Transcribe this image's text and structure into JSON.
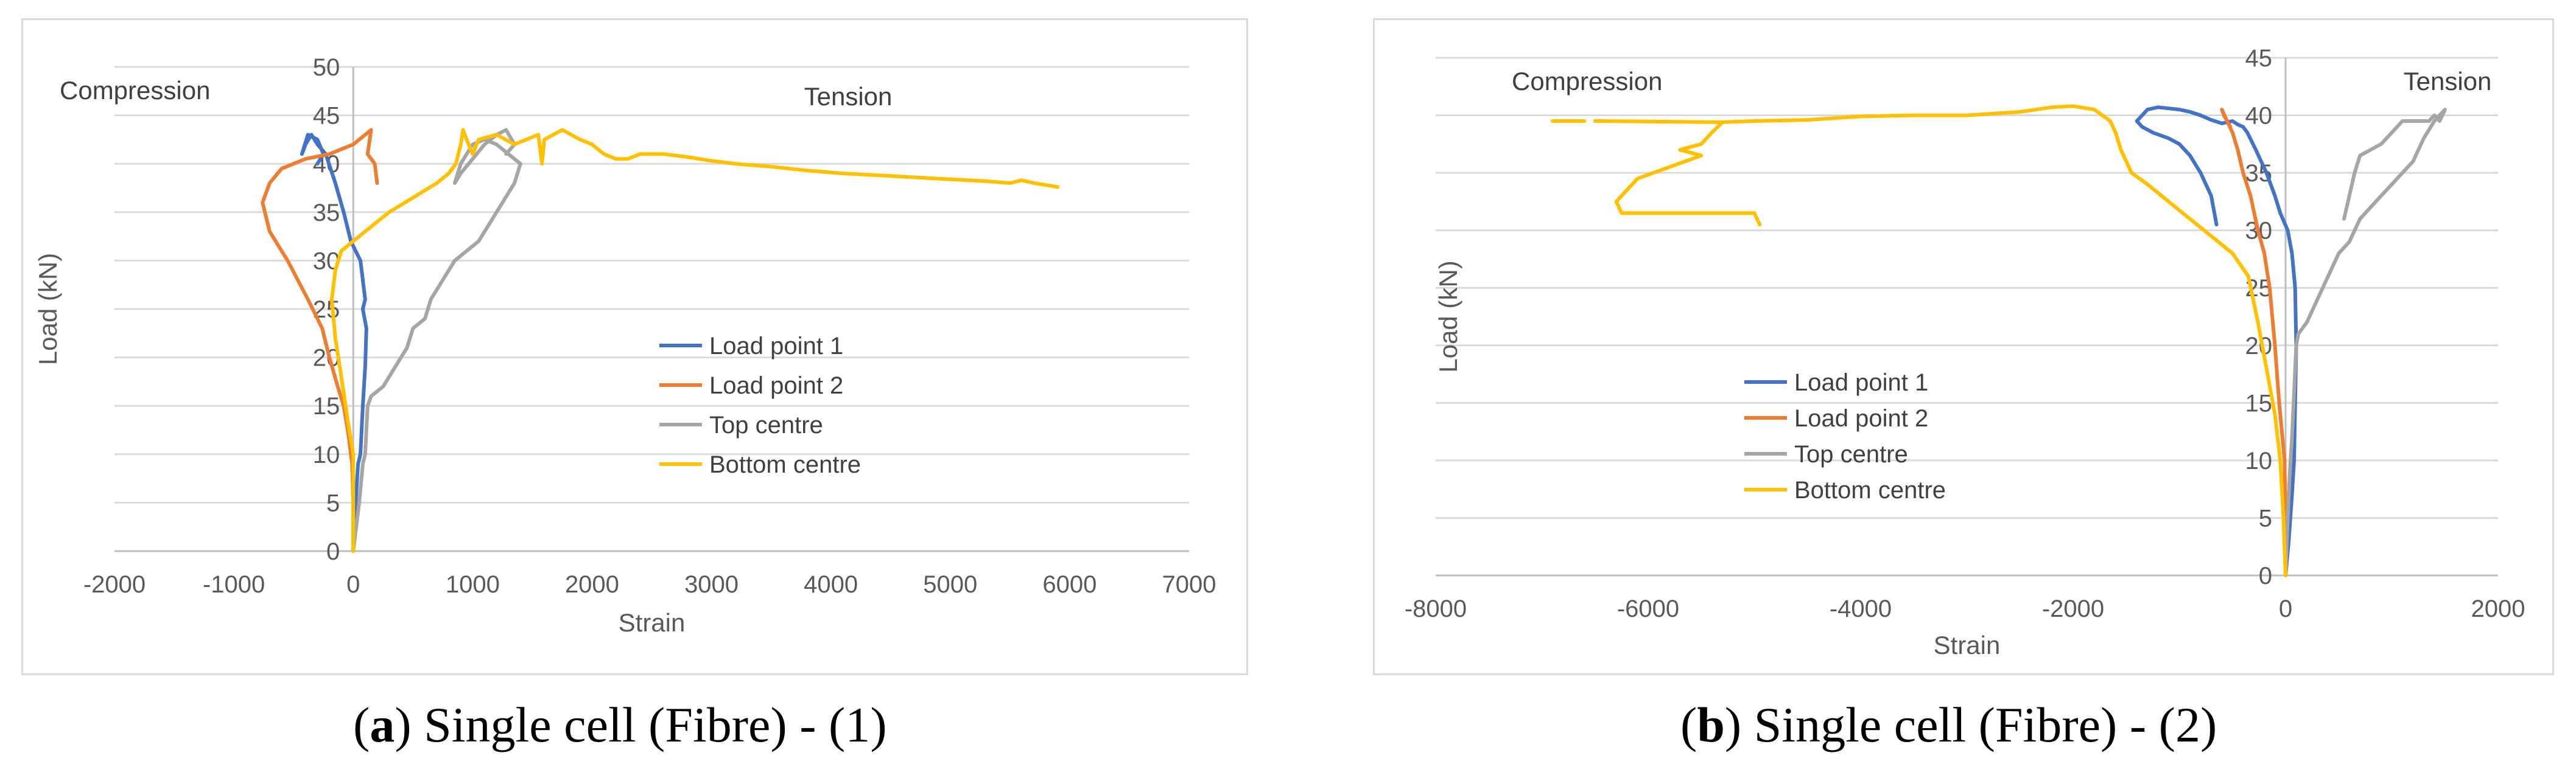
{
  "chart_data": [
    {
      "type": "line",
      "xlabel": "Strain",
      "ylabel": "Load (kN)",
      "xlim": [
        -2000,
        7000
      ],
      "ylim": [
        0,
        50
      ],
      "xticks": [
        -2000,
        -1000,
        0,
        1000,
        2000,
        3000,
        4000,
        5000,
        6000,
        7000
      ],
      "yticks": [
        0,
        5,
        10,
        15,
        20,
        25,
        30,
        35,
        40,
        45,
        50
      ],
      "grid": "horizontal",
      "legend_position": "center-right",
      "annotations": [
        "Compression",
        "Tension"
      ],
      "caption_letter": "a",
      "caption_text": ") Single cell (Fibre) - (1)",
      "caption_open": "(",
      "series": [
        {
          "name": "Load point 1",
          "color": "#4472c4",
          "points": [
            [
              0,
              0
            ],
            [
              20,
              5
            ],
            [
              40,
              9
            ],
            [
              60,
              10
            ],
            [
              80,
              15
            ],
            [
              100,
              19
            ],
            [
              110,
              23
            ],
            [
              80,
              25
            ],
            [
              100,
              26
            ],
            [
              80,
              28
            ],
            [
              60,
              30
            ],
            [
              -20,
              32
            ],
            [
              -80,
              35
            ],
            [
              -150,
              38
            ],
            [
              -230,
              41
            ],
            [
              -300,
              42
            ],
            [
              -350,
              43
            ],
            [
              -400,
              42
            ],
            [
              -430,
              41
            ],
            [
              -380,
              43
            ],
            [
              -300,
              42.5
            ],
            [
              -250,
              41
            ],
            [
              -300,
              40
            ]
          ]
        },
        {
          "name": "Load point 2",
          "color": "#ed7d31",
          "points": [
            [
              0,
              0
            ],
            [
              0,
              5
            ],
            [
              -10,
              9
            ],
            [
              -40,
              12
            ],
            [
              -80,
              15
            ],
            [
              -130,
              17
            ],
            [
              -200,
              20
            ],
            [
              -260,
              23
            ],
            [
              -380,
              26
            ],
            [
              -550,
              30
            ],
            [
              -700,
              33
            ],
            [
              -760,
              36
            ],
            [
              -700,
              38
            ],
            [
              -600,
              39.5
            ],
            [
              -400,
              40.5
            ],
            [
              -200,
              41
            ],
            [
              0,
              42
            ],
            [
              100,
              43
            ],
            [
              150,
              43.5
            ],
            [
              120,
              41
            ],
            [
              180,
              40
            ],
            [
              200,
              38
            ]
          ]
        },
        {
          "name": "Top centre",
          "color": "#a5a5a5",
          "points": [
            [
              0,
              0
            ],
            [
              50,
              5
            ],
            [
              80,
              9
            ],
            [
              100,
              10
            ],
            [
              120,
              15
            ],
            [
              150,
              16
            ],
            [
              250,
              17
            ],
            [
              350,
              19
            ],
            [
              450,
              21
            ],
            [
              500,
              23
            ],
            [
              600,
              24
            ],
            [
              650,
              26
            ],
            [
              750,
              28
            ],
            [
              850,
              30
            ],
            [
              950,
              31
            ],
            [
              1050,
              32
            ],
            [
              1150,
              34
            ],
            [
              1250,
              36
            ],
            [
              1350,
              38
            ],
            [
              1400,
              40
            ],
            [
              1300,
              41
            ],
            [
              1200,
              42
            ],
            [
              1100,
              42.5
            ],
            [
              1000,
              42
            ],
            [
              900,
              40
            ],
            [
              850,
              38
            ],
            [
              900,
              39
            ],
            [
              1000,
              40.5
            ],
            [
              1100,
              42
            ],
            [
              1200,
              43
            ],
            [
              1280,
              43.5
            ],
            [
              1350,
              42
            ],
            [
              1280,
              41
            ]
          ]
        },
        {
          "name": "Bottom centre",
          "color": "#ffc000",
          "points": [
            [
              0,
              0
            ],
            [
              0,
              5
            ],
            [
              0,
              10
            ],
            [
              -40,
              13
            ],
            [
              -100,
              18
            ],
            [
              -150,
              22
            ],
            [
              -180,
              26
            ],
            [
              -150,
              29
            ],
            [
              -100,
              31
            ],
            [
              100,
              33
            ],
            [
              300,
              35
            ],
            [
              500,
              36.5
            ],
            [
              700,
              38
            ],
            [
              800,
              39
            ],
            [
              860,
              40
            ],
            [
              900,
              42
            ],
            [
              920,
              43.5
            ],
            [
              950,
              42.5
            ],
            [
              1000,
              41
            ],
            [
              1050,
              42.5
            ],
            [
              1200,
              43
            ],
            [
              1350,
              42
            ],
            [
              1550,
              43
            ],
            [
              1580,
              40
            ],
            [
              1600,
              42.5
            ],
            [
              1750,
              43.5
            ],
            [
              1900,
              42.5
            ],
            [
              2000,
              42
            ],
            [
              2100,
              41
            ],
            [
              2200,
              40.5
            ],
            [
              2300,
              40.5
            ],
            [
              2400,
              41
            ],
            [
              2600,
              41
            ],
            [
              2800,
              40.7
            ],
            [
              3000,
              40.3
            ],
            [
              3200,
              40
            ],
            [
              3500,
              39.7
            ],
            [
              3800,
              39.3
            ],
            [
              4100,
              39
            ],
            [
              4400,
              38.8
            ],
            [
              4700,
              38.6
            ],
            [
              5000,
              38.4
            ],
            [
              5300,
              38.2
            ],
            [
              5500,
              38
            ],
            [
              5600,
              38.3
            ],
            [
              5700,
              38
            ],
            [
              5800,
              37.8
            ],
            [
              5900,
              37.6
            ]
          ]
        }
      ]
    },
    {
      "type": "line",
      "xlabel": "Strain",
      "ylabel": "Load (kN)",
      "xlim": [
        -8000,
        2000
      ],
      "ylim": [
        0,
        45
      ],
      "xticks": [
        -8000,
        -6000,
        -4000,
        -2000,
        0,
        2000
      ],
      "yticks": [
        0,
        5,
        10,
        15,
        20,
        25,
        30,
        35,
        40,
        45
      ],
      "grid": "horizontal",
      "legend_position": "center-right",
      "annotations": [
        "Compression",
        "Tension"
      ],
      "caption_letter": "b",
      "caption_text": ") Single cell (Fibre) - (2)",
      "caption_open": "(",
      "series": [
        {
          "name": "Load point 1",
          "color": "#4472c4",
          "points": [
            [
              0,
              0
            ],
            [
              30,
              3
            ],
            [
              60,
              7
            ],
            [
              80,
              10
            ],
            [
              90,
              15
            ],
            [
              100,
              20
            ],
            [
              90,
              25
            ],
            [
              60,
              28
            ],
            [
              20,
              30
            ],
            [
              -50,
              31.5
            ],
            [
              -100,
              33
            ],
            [
              -180,
              35
            ],
            [
              -280,
              37
            ],
            [
              -360,
              38.5
            ],
            [
              -400,
              39
            ],
            [
              -450,
              39.2
            ],
            [
              -500,
              39.5
            ],
            [
              -600,
              39.3
            ],
            [
              -700,
              39.6
            ],
            [
              -800,
              40
            ],
            [
              -900,
              40.3
            ],
            [
              -1000,
              40.5
            ],
            [
              -1100,
              40.6
            ],
            [
              -1200,
              40.7
            ],
            [
              -1300,
              40.5
            ],
            [
              -1400,
              39.5
            ],
            [
              -1350,
              39
            ],
            [
              -1250,
              38.5
            ],
            [
              -1100,
              38
            ],
            [
              -1000,
              37.5
            ],
            [
              -900,
              36.5
            ],
            [
              -800,
              35
            ],
            [
              -700,
              33
            ],
            [
              -650,
              30.5
            ]
          ]
        },
        {
          "name": "Load point 2",
          "color": "#ed7d31",
          "points": [
            [
              0,
              0
            ],
            [
              0,
              5
            ],
            [
              -10,
              10
            ],
            [
              -30,
              12
            ],
            [
              -60,
              15
            ],
            [
              -100,
              20
            ],
            [
              -150,
              25
            ],
            [
              -200,
              28
            ],
            [
              -260,
              30
            ],
            [
              -330,
              33
            ],
            [
              -400,
              35
            ],
            [
              -450,
              37
            ],
            [
              -500,
              38.5
            ],
            [
              -550,
              39.5
            ],
            [
              -600,
              40.5
            ],
            [
              -580,
              40
            ],
            [
              -520,
              39
            ]
          ]
        },
        {
          "name": "Top centre",
          "color": "#a5a5a5",
          "points": [
            [
              0,
              0
            ],
            [
              20,
              5
            ],
            [
              40,
              9
            ],
            [
              60,
              12
            ],
            [
              80,
              16
            ],
            [
              100,
              20
            ],
            [
              120,
              21
            ],
            [
              200,
              22
            ],
            [
              300,
              24
            ],
            [
              400,
              26
            ],
            [
              500,
              28
            ],
            [
              600,
              29
            ],
            [
              700,
              31
            ],
            [
              800,
              32
            ],
            [
              900,
              33
            ],
            [
              1000,
              34
            ],
            [
              1100,
              35
            ],
            [
              1200,
              36
            ],
            [
              1300,
              38
            ],
            [
              1400,
              39.5
            ],
            [
              1450,
              40
            ],
            [
              1500,
              40.5
            ],
            [
              1450,
              39.5
            ],
            [
              1400,
              40
            ],
            [
              1350,
              39.5
            ],
            [
              1250,
              39.5
            ],
            [
              1100,
              39.5
            ],
            [
              1000,
              38.5
            ],
            [
              900,
              37.5
            ],
            [
              800,
              37
            ],
            [
              700,
              36.5
            ],
            [
              650,
              35
            ],
            [
              600,
              33
            ],
            [
              550,
              31
            ]
          ]
        },
        {
          "name": "Bottom centre",
          "color": "#ffc000",
          "points": [
            [
              0,
              0
            ],
            [
              -20,
              5
            ],
            [
              -50,
              10
            ],
            [
              -100,
              14
            ],
            [
              -180,
              18
            ],
            [
              -260,
              22
            ],
            [
              -350,
              26
            ],
            [
              -500,
              28
            ],
            [
              -700,
              29.5
            ],
            [
              -900,
              31
            ],
            [
              -1100,
              32.5
            ],
            [
              -1300,
              34
            ],
            [
              -1450,
              35
            ],
            [
              -1550,
              37
            ],
            [
              -1600,
              38.5
            ],
            [
              -1650,
              39.5
            ],
            [
              -1800,
              40.5
            ],
            [
              -2000,
              40.8
            ],
            [
              -2200,
              40.7
            ],
            [
              -2500,
              40.3
            ],
            [
              -3000,
              40
            ],
            [
              -3500,
              40
            ],
            [
              -4000,
              39.9
            ],
            [
              -4500,
              39.6
            ],
            [
              -5000,
              39.5
            ],
            [
              -5300,
              39.4
            ],
            [
              -5400,
              38.5
            ],
            [
              -5500,
              37.5
            ],
            [
              -5700,
              37
            ],
            [
              -5500,
              36.5
            ],
            [
              -5800,
              35.5
            ],
            [
              -6100,
              34.5
            ],
            [
              -6300,
              32.5
            ],
            [
              -6250,
              31.5
            ],
            [
              -5500,
              31.5
            ],
            [
              -5000,
              31.5
            ],
            [
              -4950,
              30.5
            ]
          ]
        },
        {
          "name": "",
          "color": "#ffc000",
          "points": [
            [
              -6900,
              39.5
            ],
            [
              -6600,
              39.5
            ]
          ]
        },
        {
          "name": "",
          "color": "#ffc000",
          "points": [
            [
              -6500,
              39.5
            ],
            [
              -5300,
              39.4
            ]
          ]
        }
      ]
    }
  ]
}
